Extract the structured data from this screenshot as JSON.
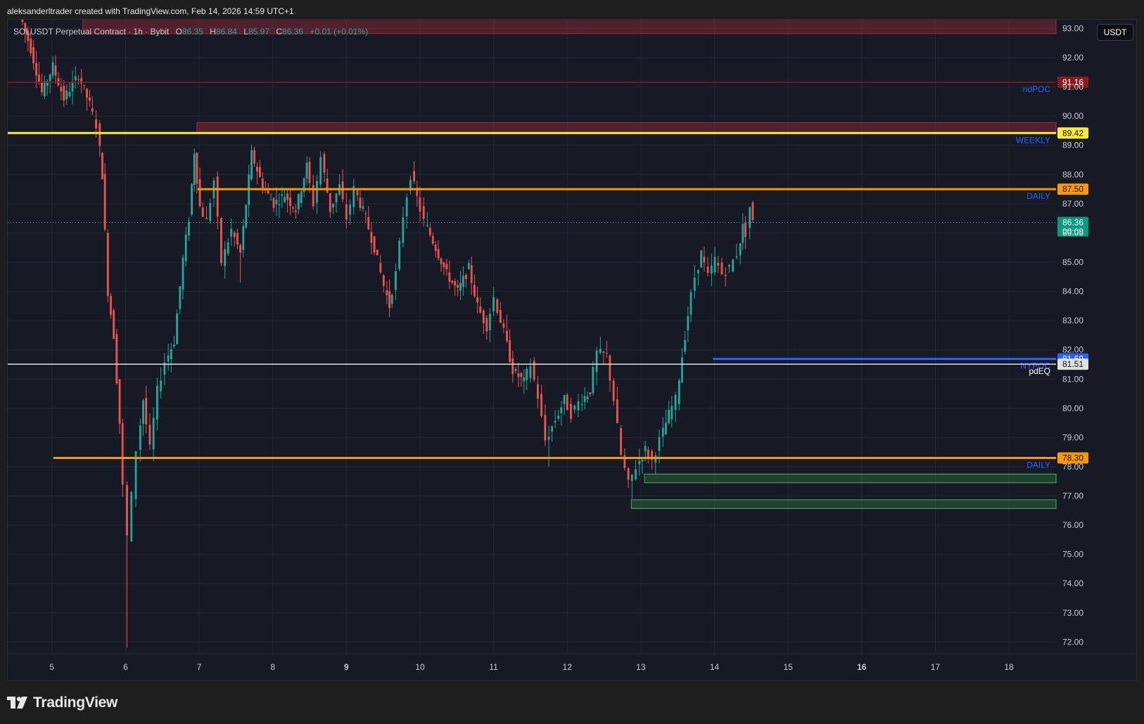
{
  "attribution": "aleksanderltrader created with TradingView.com, Feb 14, 2026 14:59 UTC+1",
  "legend": {
    "symbol": "SOLUSDT Perpetual Contract · 1h · Bybit",
    "open_key": "O",
    "open": "86.35",
    "high_key": "H",
    "high": "86.84",
    "low_key": "L",
    "low": "85.97",
    "close_key": "C",
    "close": "86.36",
    "change": "+0.01 (+0.01%)"
  },
  "currency": "USDT",
  "brand": "TradingView",
  "colors": {
    "up": "#26a69a",
    "down": "#ef5350",
    "weekly": "#ffeb3b",
    "daily": "#ff9800",
    "nypoc": "#2962ff",
    "pdeq": "#e0e0e0",
    "ndpoc": "#8b1a1a",
    "label_text": "#2962ff"
  },
  "chart_data": {
    "type": "candlestick",
    "interval": "1h",
    "x_ticks": [
      "5",
      "6",
      "7",
      "8",
      "9",
      "10",
      "11",
      "12",
      "13",
      "14",
      "15",
      "16",
      "17",
      "18"
    ],
    "x_ticks_bold": [
      "9",
      "16"
    ],
    "y_ticks": [
      "93.00",
      "92.00",
      "91.00",
      "90.00",
      "89.00",
      "88.00",
      "87.00",
      "86.00",
      "85.00",
      "84.00",
      "83.00",
      "82.00",
      "81.00",
      "80.00",
      "79.00",
      "78.00",
      "77.00",
      "76.00",
      "75.00",
      "74.00",
      "73.00",
      "72.00"
    ],
    "ylim": [
      71.6,
      93.3
    ],
    "xlim": [
      4.4,
      18.64
    ],
    "grid": true,
    "last_price": "86.36",
    "countdown": "00:09",
    "path": [
      [
        4.6,
        93.5
      ],
      [
        4.75,
        92.3
      ],
      [
        4.9,
        90.8
      ],
      [
        5.05,
        91.7
      ],
      [
        5.2,
        90.6
      ],
      [
        5.4,
        91.4
      ],
      [
        5.55,
        90.4
      ],
      [
        5.65,
        89.7
      ],
      [
        5.72,
        88.0
      ],
      [
        5.8,
        84.0
      ],
      [
        5.88,
        82.5
      ],
      [
        5.96,
        79.5
      ],
      [
        6.02,
        77.3
      ],
      [
        6.08,
        75.6
      ],
      [
        6.14,
        77.0
      ],
      [
        6.2,
        78.6
      ],
      [
        6.28,
        80.3
      ],
      [
        6.38,
        78.6
      ],
      [
        6.48,
        80.6
      ],
      [
        6.58,
        81.6
      ],
      [
        6.7,
        82.3
      ],
      [
        6.82,
        85.1
      ],
      [
        6.9,
        86.5
      ],
      [
        6.97,
        88.8
      ],
      [
        7.05,
        86.9
      ],
      [
        7.15,
        86.4
      ],
      [
        7.25,
        87.8
      ],
      [
        7.35,
        85.0
      ],
      [
        7.48,
        86.1
      ],
      [
        7.6,
        85.3
      ],
      [
        7.75,
        88.7
      ],
      [
        7.9,
        87.6
      ],
      [
        8.05,
        87.0
      ],
      [
        8.2,
        87.3
      ],
      [
        8.35,
        86.8
      ],
      [
        8.5,
        88.3
      ],
      [
        8.6,
        87.0
      ],
      [
        8.7,
        88.6
      ],
      [
        8.82,
        86.8
      ],
      [
        8.95,
        87.6
      ],
      [
        9.05,
        86.5
      ],
      [
        9.15,
        87.5
      ],
      [
        9.3,
        86.5
      ],
      [
        9.42,
        85.5
      ],
      [
        9.55,
        84.2
      ],
      [
        9.62,
        83.5
      ],
      [
        9.72,
        84.6
      ],
      [
        9.82,
        86.6
      ],
      [
        9.92,
        88.0
      ],
      [
        10.0,
        87.2
      ],
      [
        10.1,
        86.4
      ],
      [
        10.25,
        85.5
      ],
      [
        10.4,
        84.6
      ],
      [
        10.55,
        84.0
      ],
      [
        10.7,
        84.8
      ],
      [
        10.82,
        83.5
      ],
      [
        10.95,
        82.8
      ],
      [
        11.05,
        83.8
      ],
      [
        11.18,
        82.6
      ],
      [
        11.3,
        81.3
      ],
      [
        11.45,
        80.9
      ],
      [
        11.55,
        81.5
      ],
      [
        11.65,
        80.4
      ],
      [
        11.75,
        78.9
      ],
      [
        11.88,
        79.6
      ],
      [
        12.0,
        80.3
      ],
      [
        12.1,
        79.8
      ],
      [
        12.2,
        80.2
      ],
      [
        12.35,
        80.6
      ],
      [
        12.45,
        81.9
      ],
      [
        12.58,
        81.8
      ],
      [
        12.68,
        80.3
      ],
      [
        12.78,
        78.4
      ],
      [
        12.88,
        77.4
      ],
      [
        12.98,
        78.0
      ],
      [
        13.1,
        78.6
      ],
      [
        13.2,
        78.2
      ],
      [
        13.3,
        78.9
      ],
      [
        13.42,
        79.8
      ],
      [
        13.52,
        80.3
      ],
      [
        13.6,
        81.8
      ],
      [
        13.68,
        83.2
      ],
      [
        13.78,
        84.5
      ],
      [
        13.86,
        85.3
      ],
      [
        13.96,
        84.5
      ],
      [
        14.05,
        85.1
      ],
      [
        14.15,
        84.6
      ],
      [
        14.25,
        84.8
      ],
      [
        14.35,
        85.3
      ],
      [
        14.42,
        86.2
      ],
      [
        14.48,
        86.0
      ],
      [
        14.52,
        86.9
      ],
      [
        14.58,
        86.36
      ]
    ],
    "wick_extremes": [
      [
        6.03,
        71.8
      ],
      [
        7.55,
        84.3
      ],
      [
        11.2,
        83.2
      ],
      [
        11.75,
        78.0
      ],
      [
        12.9,
        76.9
      ]
    ],
    "levels": [
      {
        "label": "ndPOC",
        "price": 91.16,
        "price_text": "91.16",
        "start_x": 4.4,
        "color": "#8b1a1a",
        "width": 1.5
      },
      {
        "label": "WEEKLY",
        "price": 89.42,
        "price_text": "89.42",
        "start_x": 4.4,
        "color": "#ffeb3b",
        "width": 3
      },
      {
        "label": "DAILY",
        "price": 87.5,
        "price_text": "87.50",
        "start_x": 6.98,
        "color": "#ff9800",
        "width": 3
      },
      {
        "label": "NYPOC",
        "price": 81.69,
        "price_text": "81.69",
        "start_x": 13.98,
        "color": "#2962ff",
        "width": 3
      },
      {
        "label": "pdEQ",
        "price": 81.51,
        "price_text": "81.51",
        "start_x": 4.4,
        "color": "#e0e0e0",
        "width": 1.5
      },
      {
        "label": "DAILY",
        "price": 78.3,
        "price_text": "78.30",
        "start_x": 5.02,
        "color": "#ff9800",
        "width": 3
      }
    ],
    "zones": [
      {
        "kind": "bearish",
        "from_x": 5.42,
        "top": 93.45,
        "bottom": 92.82
      },
      {
        "kind": "bearish",
        "from_x": 6.97,
        "top": 89.78,
        "bottom": 89.42
      },
      {
        "kind": "bullish",
        "from_x": 13.05,
        "top": 77.75,
        "bottom": 77.45
      },
      {
        "kind": "bullish",
        "from_x": 12.87,
        "top": 76.87,
        "bottom": 76.57
      }
    ]
  }
}
